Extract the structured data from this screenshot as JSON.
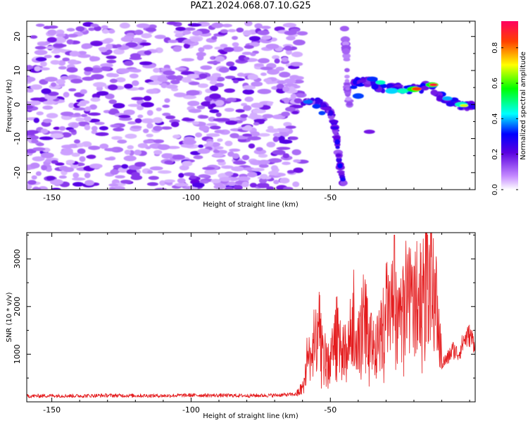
{
  "title": "PAZ1.2024.068.07.10.G25",
  "chart_data": [
    {
      "type": "heatmap",
      "title": "PAZ1.2024.068.07.10.G25",
      "xlabel": "Height of straight line (km)",
      "ylabel": "Frequency (Hz)",
      "xlim": [
        -159,
        2
      ],
      "ylim": [
        -25,
        24.5
      ],
      "xticks": [
        -150,
        -100,
        -50
      ],
      "yticks": [
        -20,
        -10,
        0,
        10,
        20
      ],
      "colorbar": {
        "label": "Normalized spectral amplitude",
        "range": [
          0,
          0.95
        ],
        "ticks": [
          0.0,
          0.2,
          0.4,
          0.6,
          0.8
        ]
      },
      "features": [
        {
          "name": "broadband noise",
          "x_range": [
            -159,
            -60
          ],
          "freq_range": [
            -25,
            24
          ],
          "amplitude_max": 0.15
        },
        {
          "name": "tone track",
          "points": [
            [
              -60,
              0.5
            ],
            [
              -55,
              1.5
            ],
            [
              -50,
              -2
            ],
            [
              -48,
              -8
            ],
            [
              -47,
              -15
            ],
            [
              -46,
              -21
            ],
            [
              -45,
              -24
            ]
          ],
          "amplitude_max": 0.35
        },
        {
          "name": "aliased track",
          "points": [
            [
              -45,
              23
            ],
            [
              -44,
              12
            ],
            [
              -44,
              5
            ],
            [
              -43,
              -1
            ]
          ],
          "amplitude_max": 0.2
        },
        {
          "name": "signal track",
          "points": [
            [
              -42,
              6
            ],
            [
              -37,
              7
            ],
            [
              -32,
              5
            ],
            [
              -27,
              5
            ],
            [
              -20,
              4.5
            ],
            [
              -14,
              5.5
            ],
            [
              -10,
              2
            ],
            [
              -4,
              0
            ],
            [
              2,
              -0.5
            ]
          ],
          "amplitude_max": 0.95
        }
      ],
      "grid": false
    },
    {
      "type": "line",
      "xlabel": "Height of straight line (km)",
      "ylabel": "SNR (10 * v/v)",
      "xlim": [
        -159,
        2
      ],
      "ylim": [
        0,
        3550
      ],
      "xticks": [
        -150,
        -100,
        -50
      ],
      "yticks": [
        1000,
        2000,
        3000
      ],
      "series": [
        {
          "color": "#e41a1c",
          "x": [
            -159,
            -150,
            -140,
            -130,
            -120,
            -110,
            -100,
            -90,
            -80,
            -70,
            -62,
            -60,
            -58,
            -56,
            -54,
            -52,
            -50,
            -48,
            -46,
            -44,
            -42,
            -40,
            -38,
            -36,
            -34,
            -32,
            -30,
            -28,
            -26,
            -24,
            -22,
            -20,
            -18,
            -16,
            -14,
            -13,
            -12,
            -11,
            -10,
            -8,
            -6,
            -4,
            -2,
            0,
            2
          ],
          "values": [
            120,
            130,
            125,
            135,
            130,
            128,
            140,
            135,
            130,
            138,
            160,
            300,
            900,
            1100,
            1500,
            1000,
            800,
            1500,
            1200,
            1000,
            1700,
            1200,
            1800,
            1500,
            1000,
            1400,
            1900,
            2000,
            1500,
            1800,
            2300,
            2000,
            2500,
            2600,
            2700,
            2500,
            2000,
            1500,
            800,
            900,
            1100,
            1000,
            1300,
            1400,
            1200
          ]
        }
      ],
      "grid": false
    }
  ]
}
